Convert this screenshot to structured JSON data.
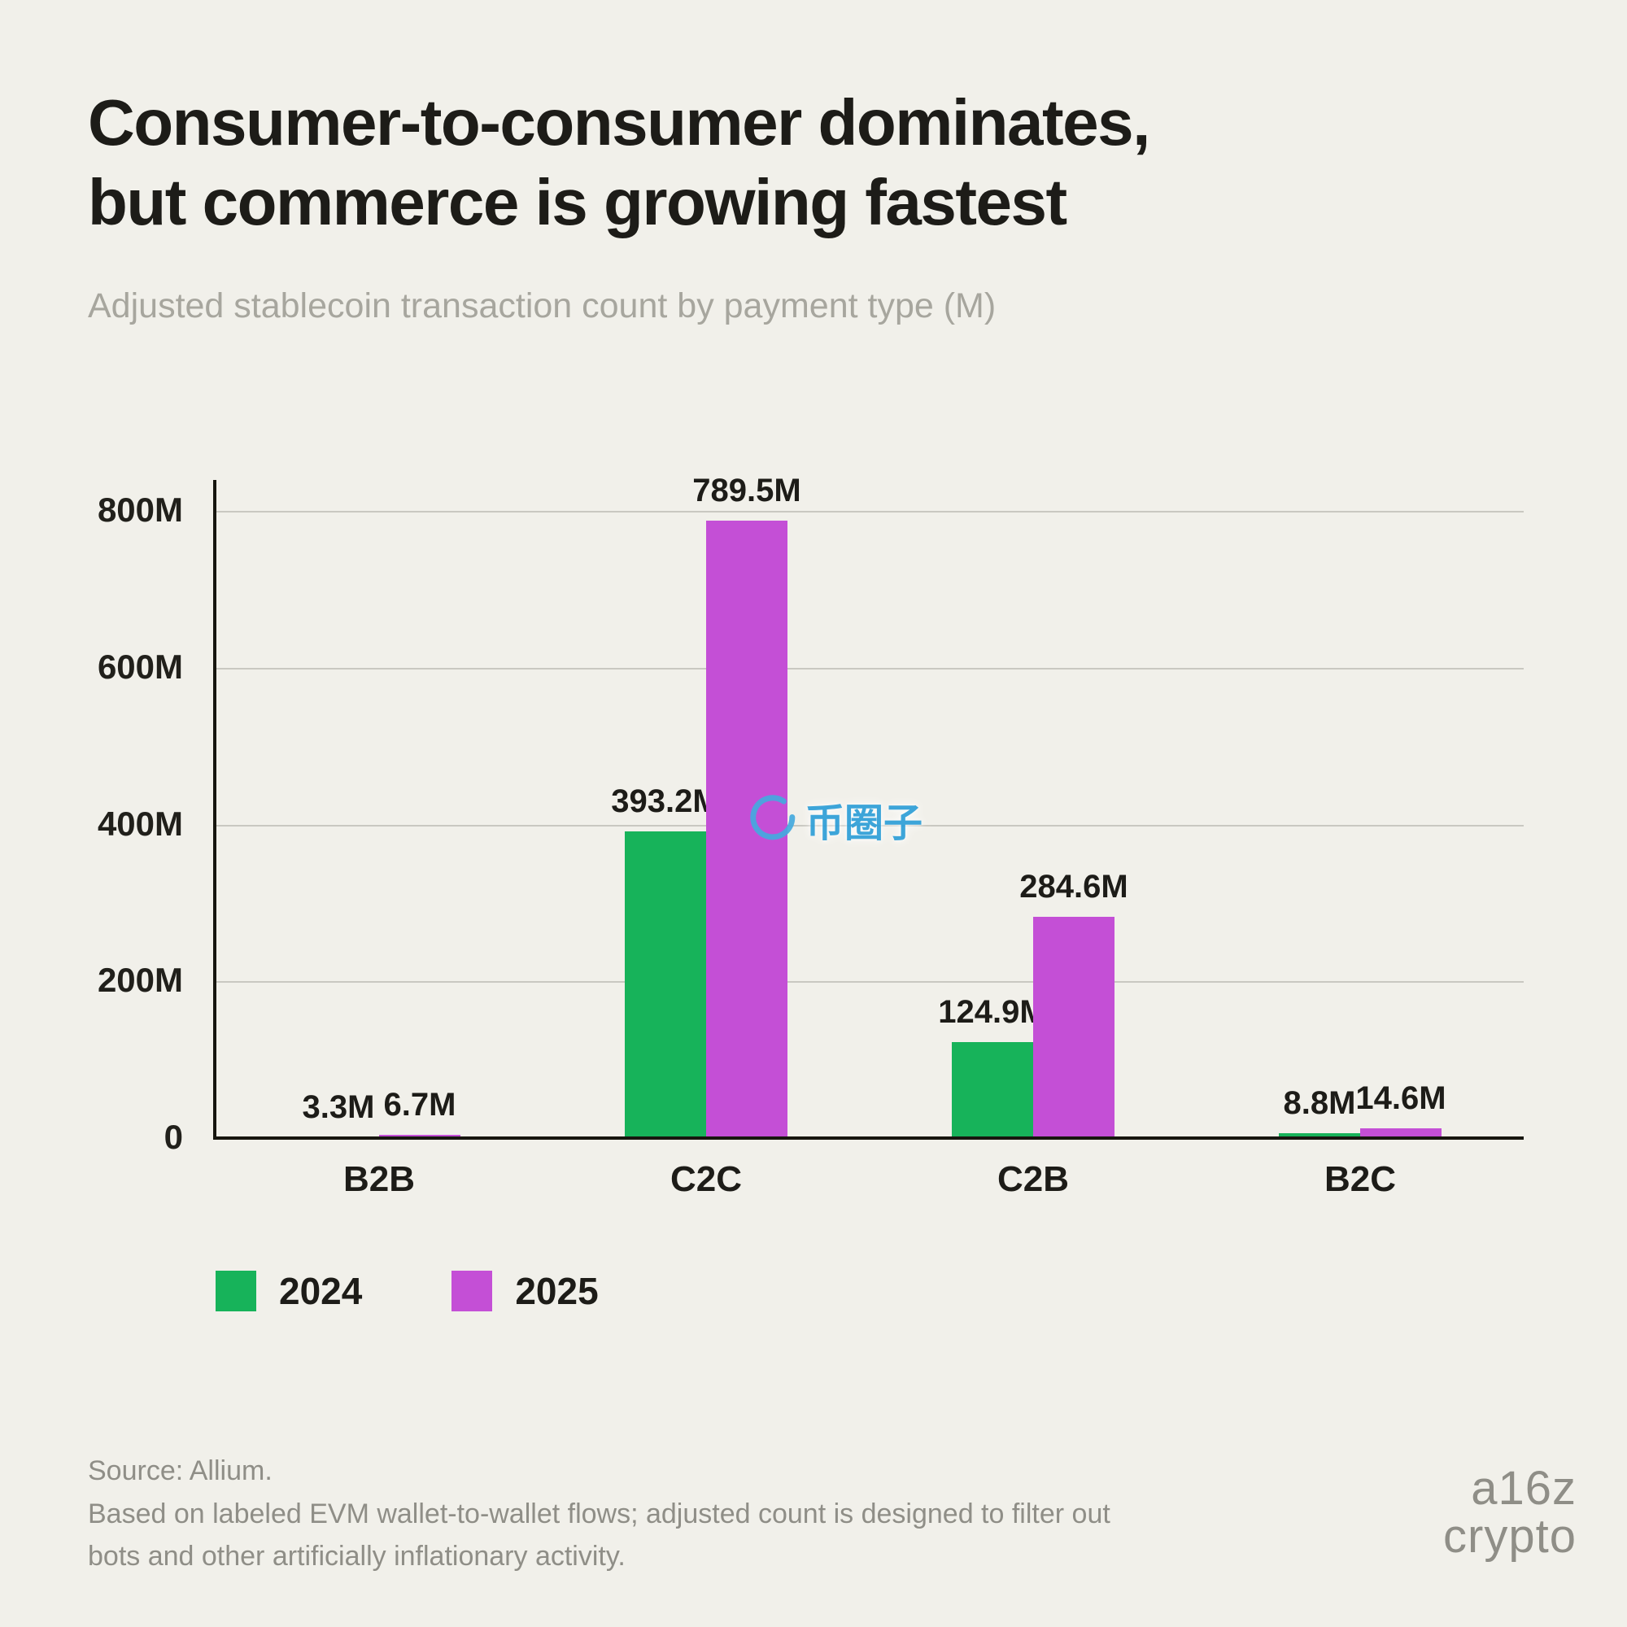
{
  "header": {
    "title_line1": "Consumer-to-consumer dominates,",
    "title_line2": "but commerce is growing fastest",
    "subtitle": "Adjusted stablecoin transaction count by payment type (M)"
  },
  "chart_data": {
    "type": "bar",
    "title": "Adjusted stablecoin transaction count by payment type (M)",
    "categories": [
      "B2B",
      "C2C",
      "C2B",
      "B2C"
    ],
    "series": [
      {
        "name": "2024",
        "color": "#17b35a",
        "values": [
          3.3,
          393.2,
          124.9,
          8.8
        ],
        "labels": [
          "3.3M",
          "393.2M",
          "124.9M",
          "8.8M"
        ]
      },
      {
        "name": "2025",
        "color": "#c44fd6",
        "values": [
          6.7,
          789.5,
          284.6,
          14.6
        ],
        "labels": [
          "6.7M",
          "789.5M",
          "284.6M",
          "14.6M"
        ]
      }
    ],
    "y_ticks": [
      {
        "value": 800,
        "label": "800M"
      },
      {
        "value": 600,
        "label": "600M"
      },
      {
        "value": 400,
        "label": "400M"
      },
      {
        "value": 200,
        "label": "200M"
      },
      {
        "value": 0,
        "label": "0"
      }
    ],
    "y_max": 800,
    "ylim": [
      0,
      800
    ],
    "unit": "M",
    "grid": true,
    "legend_position": "bottom-left"
  },
  "footer": {
    "source_line1": "Source: Allium.",
    "source_line2": "Based on labeled EVM wallet-to-wallet flows; adjusted count is designed to filter out",
    "source_line3": "bots and other artificially inflationary activity.",
    "logo_line1": "a16z",
    "logo_line2": "crypto"
  },
  "watermark": {
    "text": "币圈子",
    "icon": "circle-swirl-icon",
    "color": "#2e9fd8"
  }
}
